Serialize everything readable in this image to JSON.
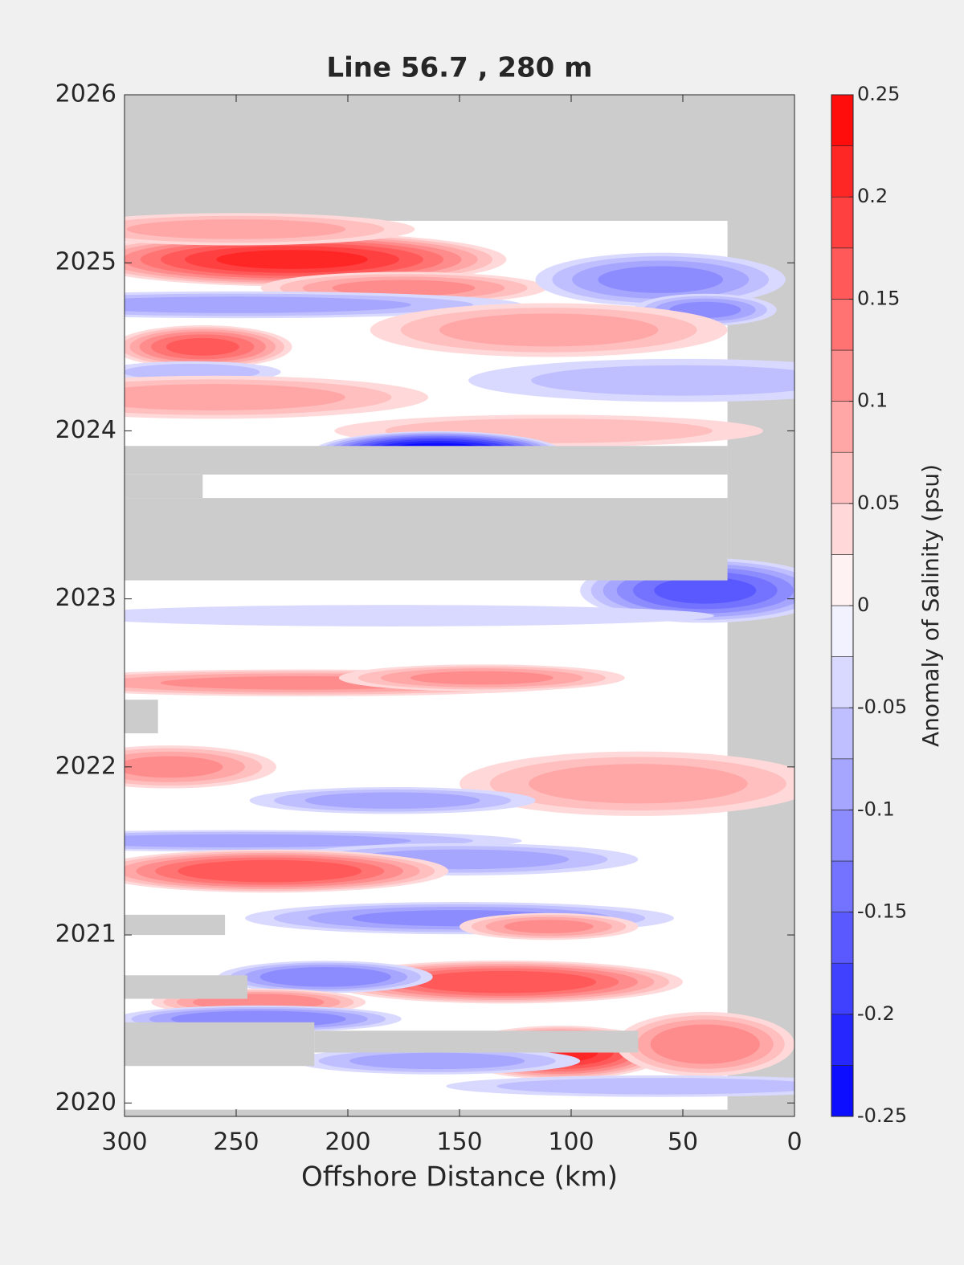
{
  "chart_data": {
    "type": "contour",
    "title": "Line 56.7 , 280 m",
    "xlabel": "Offshore Distance (km)",
    "colorbar_label": "Anomaly of Salinity (psu)",
    "xlim": [
      300,
      0
    ],
    "ylim": [
      2019.92,
      2026
    ],
    "xticks": [
      300,
      250,
      200,
      150,
      100,
      50,
      0
    ],
    "yticks": [
      2020,
      2021,
      2022,
      2023,
      2024,
      2025,
      2026
    ],
    "clim": [
      -0.25,
      0.25
    ],
    "cticks": [
      0.25,
      0.2,
      0.15,
      0.1,
      0.05,
      0,
      -0.05,
      -0.1,
      -0.15,
      -0.2,
      -0.25
    ],
    "level_step": 0.025,
    "colors": {
      "negative": "#0000ff",
      "zero": "#ffffff",
      "positive": "#ff0000"
    },
    "missing_color": "#cccccc",
    "coverage": {
      "x": [
        300,
        30
      ],
      "y": [
        2019.96,
        2025.25
      ]
    },
    "missing": [
      {
        "x": [
          300,
          30
        ],
        "y": [
          2023.74,
          2023.91
        ]
      },
      {
        "x": [
          300,
          30
        ],
        "y": [
          2023.11,
          2023.6
        ]
      },
      {
        "x": [
          300,
          265
        ],
        "y": [
          2023.6,
          2023.74
        ]
      },
      {
        "x": [
          300,
          285
        ],
        "y": [
          2022.2,
          2022.4
        ]
      },
      {
        "x": [
          300,
          255
        ],
        "y": [
          2021.0,
          2021.12
        ]
      },
      {
        "x": [
          300,
          245
        ],
        "y": [
          2020.62,
          2020.76
        ]
      },
      {
        "x": [
          300,
          215
        ],
        "y": [
          2020.22,
          2020.48
        ]
      },
      {
        "x": [
          215,
          70
        ],
        "y": [
          2020.3,
          2020.43
        ]
      }
    ],
    "features": [
      {
        "x": 225,
        "y": 2025.02,
        "rx": 60,
        "ry": 0.1,
        "value": 0.2
      },
      {
        "x": 250,
        "y": 2025.2,
        "rx": 50,
        "ry": 0.06,
        "value": 0.08
      },
      {
        "x": 175,
        "y": 2024.85,
        "rx": 40,
        "ry": 0.06,
        "value": 0.1
      },
      {
        "x": 265,
        "y": 2024.5,
        "rx": 25,
        "ry": 0.08,
        "value": 0.15
      },
      {
        "x": 250,
        "y": 2024.75,
        "rx": 80,
        "ry": 0.05,
        "value": -0.08
      },
      {
        "x": 60,
        "y": 2024.9,
        "rx": 35,
        "ry": 0.1,
        "value": -0.1
      },
      {
        "x": 40,
        "y": 2024.72,
        "rx": 20,
        "ry": 0.06,
        "value": -0.1
      },
      {
        "x": 110,
        "y": 2024.6,
        "rx": 50,
        "ry": 0.1,
        "value": 0.08
      },
      {
        "x": 270,
        "y": 2024.35,
        "rx": 25,
        "ry": 0.04,
        "value": -0.06
      },
      {
        "x": 260,
        "y": 2024.2,
        "rx": 60,
        "ry": 0.08,
        "value": 0.08
      },
      {
        "x": 50,
        "y": 2024.3,
        "rx": 60,
        "ry": 0.08,
        "value": -0.05
      },
      {
        "x": 110,
        "y": 2024.0,
        "rx": 60,
        "ry": 0.06,
        "value": 0.06
      },
      {
        "x": 160,
        "y": 2023.87,
        "rx": 35,
        "ry": 0.08,
        "value": -0.25
      },
      {
        "x": 40,
        "y": 2023.05,
        "rx": 35,
        "ry": 0.12,
        "value": -0.15
      },
      {
        "x": 180,
        "y": 2022.9,
        "rx": 90,
        "ry": 0.04,
        "value": -0.04
      },
      {
        "x": 220,
        "y": 2022.5,
        "rx": 80,
        "ry": 0.05,
        "value": 0.1
      },
      {
        "x": 140,
        "y": 2022.53,
        "rx": 40,
        "ry": 0.05,
        "value": 0.1
      },
      {
        "x": 280,
        "y": 2022.0,
        "rx": 30,
        "ry": 0.08,
        "value": 0.1
      },
      {
        "x": 70,
        "y": 2021.9,
        "rx": 50,
        "ry": 0.12,
        "value": 0.08
      },
      {
        "x": 180,
        "y": 2021.8,
        "rx": 40,
        "ry": 0.05,
        "value": -0.08
      },
      {
        "x": 250,
        "y": 2021.56,
        "rx": 80,
        "ry": 0.04,
        "value": -0.08
      },
      {
        "x": 150,
        "y": 2021.45,
        "rx": 50,
        "ry": 0.06,
        "value": -0.08
      },
      {
        "x": 235,
        "y": 2021.38,
        "rx": 50,
        "ry": 0.08,
        "value": 0.17
      },
      {
        "x": 150,
        "y": 2021.1,
        "rx": 60,
        "ry": 0.06,
        "value": -0.1
      },
      {
        "x": 110,
        "y": 2021.05,
        "rx": 25,
        "ry": 0.05,
        "value": 0.1
      },
      {
        "x": 130,
        "y": 2020.72,
        "rx": 50,
        "ry": 0.08,
        "value": 0.17
      },
      {
        "x": 210,
        "y": 2020.75,
        "rx": 30,
        "ry": 0.06,
        "value": -0.12
      },
      {
        "x": 240,
        "y": 2020.6,
        "rx": 30,
        "ry": 0.05,
        "value": 0.12
      },
      {
        "x": 240,
        "y": 2020.5,
        "rx": 40,
        "ry": 0.05,
        "value": -0.12
      },
      {
        "x": 105,
        "y": 2020.3,
        "rx": 30,
        "ry": 0.1,
        "value": 0.2
      },
      {
        "x": 40,
        "y": 2020.35,
        "rx": 25,
        "ry": 0.12,
        "value": 0.12
      },
      {
        "x": 160,
        "y": 2020.25,
        "rx": 40,
        "ry": 0.05,
        "value": -0.08
      },
      {
        "x": 60,
        "y": 2020.1,
        "rx": 60,
        "ry": 0.04,
        "value": -0.06
      }
    ]
  }
}
